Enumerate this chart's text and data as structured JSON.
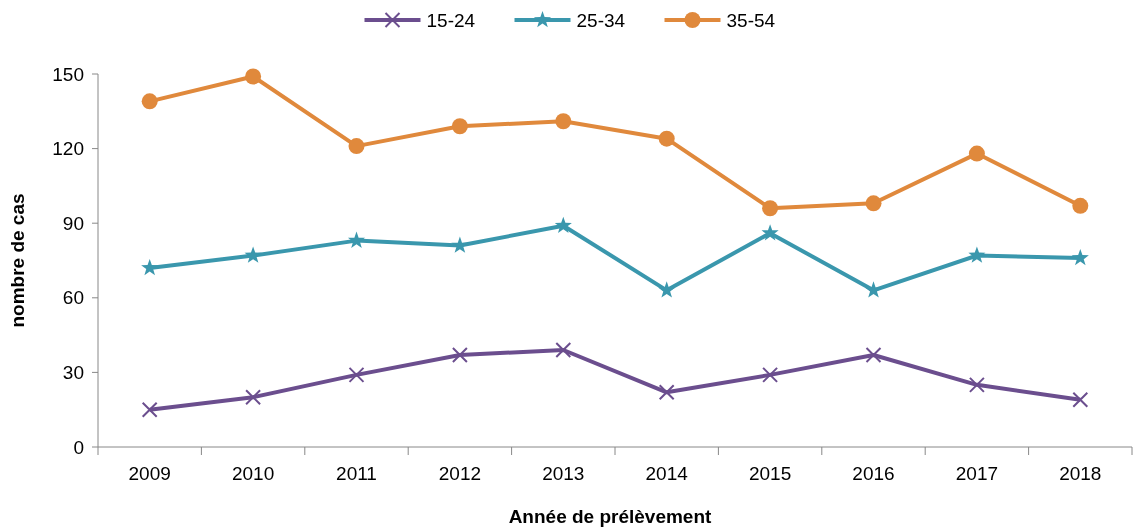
{
  "chart_data": {
    "type": "line",
    "xlabel": "Année de prélèvement",
    "ylabel": "nombre de cas",
    "categories": [
      "2009",
      "2010",
      "2011",
      "2012",
      "2013",
      "2014",
      "2015",
      "2016",
      "2017",
      "2018"
    ],
    "series": [
      {
        "name": "15-24",
        "color": "#6b4e8e",
        "marker": "cross",
        "values": [
          15,
          20,
          29,
          37,
          39,
          22,
          29,
          37,
          25,
          19
        ]
      },
      {
        "name": "25-34",
        "color": "#3a97ad",
        "marker": "star",
        "values": [
          72,
          77,
          83,
          81,
          89,
          63,
          86,
          63,
          77,
          76
        ]
      },
      {
        "name": "35-54",
        "color": "#e0893c",
        "marker": "circle",
        "values": [
          139,
          149,
          121,
          129,
          131,
          124,
          96,
          98,
          118,
          97
        ]
      }
    ],
    "ylim": [
      0,
      150
    ],
    "yticks": [
      0,
      30,
      60,
      90,
      120,
      150
    ],
    "grid": false,
    "legend": "top",
    "line_style": "solid"
  }
}
